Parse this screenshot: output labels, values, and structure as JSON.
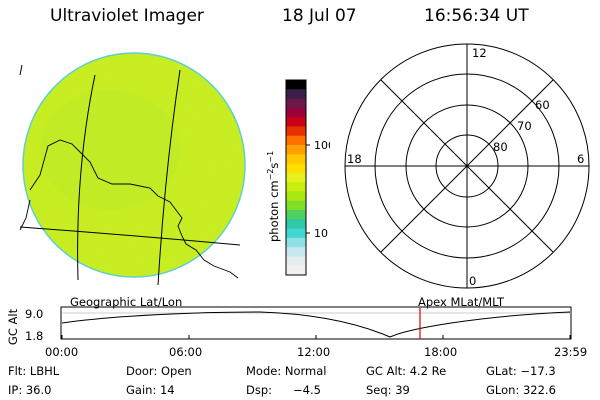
{
  "header": {
    "title": "Ultraviolet Imager",
    "date": "18 Jul 07",
    "time": "16:56:34 UT"
  },
  "colorbar": {
    "unit": "photon cm",
    "unit_exp1": "−2",
    "unit_s": "s",
    "unit_exp2": "−1",
    "tick_100": "100",
    "tick_10": "10",
    "colors": [
      "#000000",
      "#3a1f4a",
      "#6a1a4a",
      "#9a003a",
      "#c80018",
      "#e83000",
      "#ff7000",
      "#ffa000",
      "#ffc800",
      "#ffe000",
      "#e8f020",
      "#c8ef10",
      "#a8e810",
      "#80e028",
      "#50d060",
      "#30c8a8",
      "#40d8d0",
      "#90e0e8",
      "#c8e8ef",
      "#e4eef1",
      "#f0f0f0"
    ]
  },
  "polar": {
    "mlt_top": "12",
    "mlt_left": "18",
    "mlt_right": "6",
    "mlt_bottom": "0",
    "lat_60": "60",
    "lat_70": "70",
    "lat_80": "80"
  },
  "labels": {
    "geo": "Geographic Lat/Lon",
    "apex": "Apex MLat/MLT",
    "gc_alt_axis": "GC Alt",
    "alt_max": "9.0",
    "alt_min": "1.8"
  },
  "timeline": {
    "ticks": [
      "00:00",
      "06:00",
      "12:00",
      "18:00",
      "23:59"
    ],
    "marker_color": "#e00000"
  },
  "status": {
    "flt": "Flt: LBHL",
    "ip": "IP: 36.0",
    "door": "Door: Open",
    "gain": "Gain: 14",
    "mode": "Mode: Normal",
    "dsp": "Dsp:",
    "dsp_val": "−4.5",
    "gc_alt": "GC Alt: 4.2 Re",
    "seq": "Seq: 39",
    "glat": "GLat: −17.3",
    "glon": "GLon: 322.6"
  }
}
